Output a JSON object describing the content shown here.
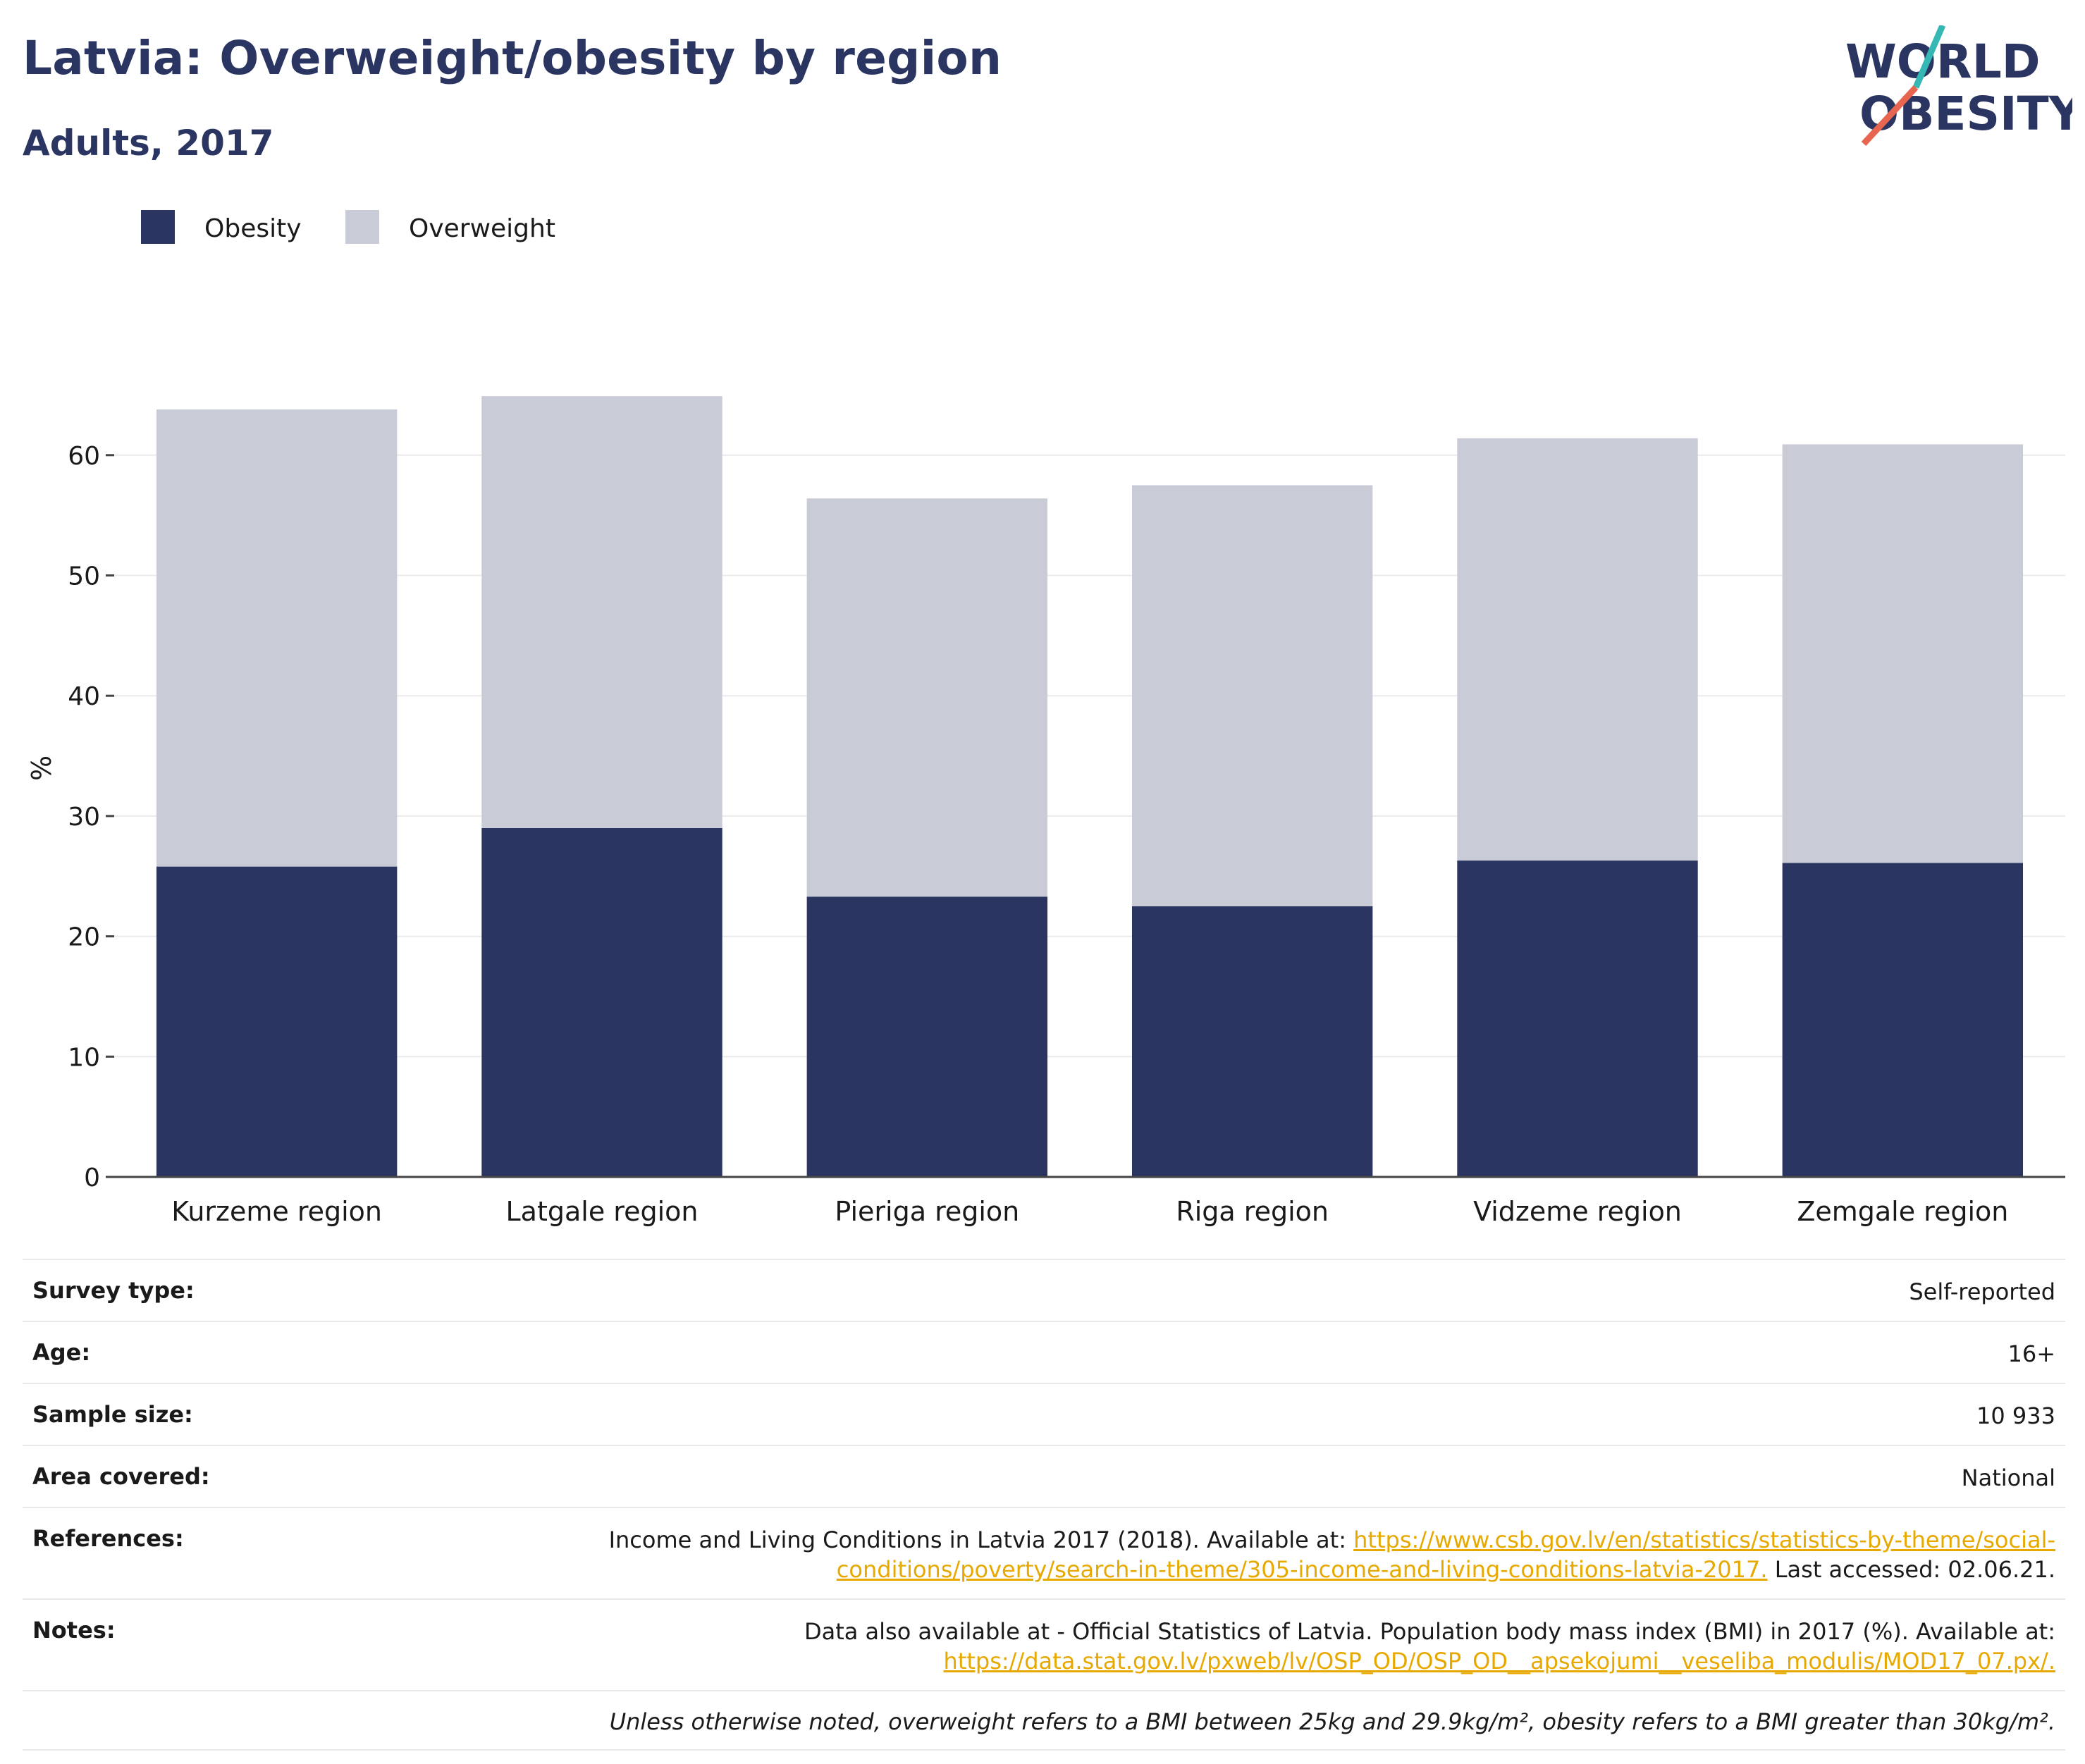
{
  "header": {
    "title": "Latvia: Overweight/obesity by region",
    "subtitle": "Adults, 2017"
  },
  "logo": {
    "line1": "WORLD",
    "line2": "OBESITY"
  },
  "colors": {
    "obesity": "#2a3562",
    "overweight": "#c9cbd6",
    "accent": "#e7a800",
    "logo_teal": "#35b7b4",
    "logo_coral": "#e8654f"
  },
  "chart_data": {
    "type": "bar",
    "stacked": true,
    "categories": [
      "Kurzeme region",
      "Latgale region",
      "Pieriga region",
      "Riga region",
      "Vidzeme region",
      "Zemgale region"
    ],
    "series": [
      {
        "name": "Obesity",
        "values": [
          25.8,
          29.0,
          23.3,
          22.5,
          26.3,
          26.1
        ]
      },
      {
        "name": "Overweight",
        "values": [
          38.0,
          35.9,
          33.1,
          35.0,
          35.1,
          34.8
        ]
      }
    ],
    "ylabel": "%",
    "ylim": [
      0,
      70
    ],
    "yticks": [
      0,
      10,
      20,
      30,
      40,
      50,
      60
    ],
    "grid": true,
    "legend": "top-left"
  },
  "meta": {
    "survey_type": {
      "label": "Survey type:",
      "value": "Self-reported"
    },
    "age": {
      "label": "Age:",
      "value": "16+"
    },
    "sample_size": {
      "label": "Sample size:",
      "value": "10 933"
    },
    "area": {
      "label": "Area covered:",
      "value": "National"
    },
    "references": {
      "label": "References:",
      "text_before": "Income and Living Conditions in Latvia 2017 (2018). Available at: ",
      "link_line1": "https://www.csb.gov.lv/en/statistics/statistics-by-theme/social-",
      "link_line2": "conditions/poverty/search-in-theme/305-income-and-living-conditions-latvia-2017.",
      "text_after": " Last accessed: 02.06.21."
    },
    "notes": {
      "label": "Notes:",
      "text": "Data also available at - Official Statistics of Latvia. Population body mass index (BMI) in 2017 (%). Available at:",
      "link": "https://data.stat.gov.lv/pxweb/lv/OSP_OD/OSP_OD__apsekojumi__veseliba_modulis/MOD17_07.px/."
    },
    "footnote": "Unless otherwise noted, overweight refers to a BMI between 25kg and 29.9kg/m², obesity refers to a BMI greater than 30kg/m²."
  }
}
